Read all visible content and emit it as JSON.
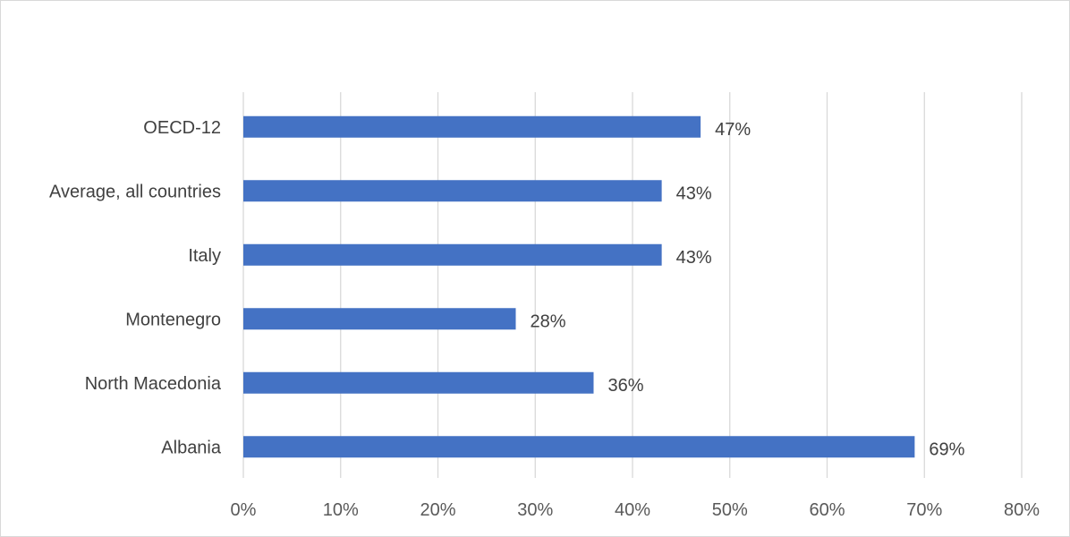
{
  "chart_data": {
    "type": "bar",
    "orientation": "horizontal",
    "title": "",
    "xlabel": "",
    "ylabel": "",
    "categories": [
      "Albania",
      "North Macedonia",
      "Montenegro",
      "Italy",
      "Average, all countries",
      "OECD-12"
    ],
    "values": [
      69,
      36,
      28,
      43,
      43,
      47
    ],
    "data_labels": [
      "69%",
      "36%",
      "28%",
      "43%",
      "43%",
      "47%"
    ],
    "xlim": [
      0,
      80
    ],
    "xticks": [
      0,
      10,
      20,
      30,
      40,
      50,
      60,
      70,
      80
    ],
    "xtick_labels": [
      "0%",
      "10%",
      "20%",
      "30%",
      "40%",
      "50%",
      "60%",
      "70%",
      "80%"
    ],
    "grid": "vertical",
    "legend": "none",
    "bar_color": "#4472c4",
    "grid_color": "#d9d9d9"
  }
}
